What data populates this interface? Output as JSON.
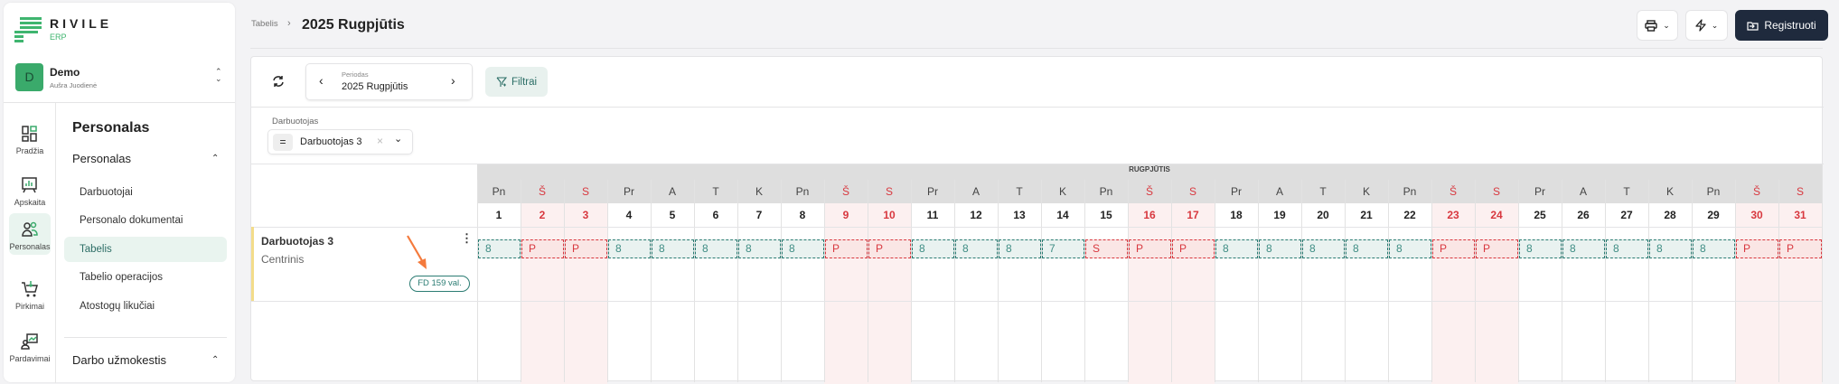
{
  "brand": {
    "name": "RIVILE",
    "sub": "ERP"
  },
  "company": {
    "initial": "D",
    "name": "Demo",
    "user": "Aušra Juodienė"
  },
  "rail": [
    {
      "label": "Pradžia",
      "icon": "dashboard-icon"
    },
    {
      "label": "Apskaita",
      "icon": "chart-board-icon"
    },
    {
      "label": "Personalas",
      "icon": "users-icon",
      "active": true
    },
    {
      "label": "Pirkimai",
      "icon": "cart-icon"
    },
    {
      "label": "Pardavimai",
      "icon": "sales-icon"
    }
  ],
  "nav": {
    "title": "Personalas",
    "section": "Personalas",
    "items": [
      "Darbuotojai",
      "Personalo dokumentai",
      "Tabelis",
      "Tabelio operacijos",
      "Atostogų likučiai"
    ],
    "active": "Tabelis",
    "section2": "Darbo užmokestis"
  },
  "breadcrumb": {
    "parent": "Tabelis",
    "current": "2025 Rugpjūtis"
  },
  "actions": {
    "print_icon": "printer-icon",
    "quick_icon": "lightning-icon",
    "register": "Registruoti"
  },
  "toolbar": {
    "period_label": "Periodas",
    "period_value": "2025 Rugpjūtis",
    "filters": "Filtrai"
  },
  "filter": {
    "label": "Darbuotojas",
    "value": "Darbuotojas 3"
  },
  "timesheet": {
    "month": "RUGPJŪTIS",
    "days": [
      {
        "d": "1",
        "w": "Pn",
        "v": "8"
      },
      {
        "d": "2",
        "w": "Š",
        "v": "P",
        "off": true
      },
      {
        "d": "3",
        "w": "S",
        "v": "P",
        "off": true
      },
      {
        "d": "4",
        "w": "Pr",
        "v": "8"
      },
      {
        "d": "5",
        "w": "A",
        "v": "8"
      },
      {
        "d": "6",
        "w": "T",
        "v": "8"
      },
      {
        "d": "7",
        "w": "K",
        "v": "8"
      },
      {
        "d": "8",
        "w": "Pn",
        "v": "8"
      },
      {
        "d": "9",
        "w": "Š",
        "v": "P",
        "off": true
      },
      {
        "d": "10",
        "w": "S",
        "v": "P",
        "off": true
      },
      {
        "d": "11",
        "w": "Pr",
        "v": "8"
      },
      {
        "d": "12",
        "w": "A",
        "v": "8"
      },
      {
        "d": "13",
        "w": "T",
        "v": "8"
      },
      {
        "d": "14",
        "w": "K",
        "v": "7"
      },
      {
        "d": "15",
        "w": "Pn",
        "v": "S",
        "redcell": true
      },
      {
        "d": "16",
        "w": "Š",
        "v": "P",
        "off": true
      },
      {
        "d": "17",
        "w": "S",
        "v": "P",
        "off": true
      },
      {
        "d": "18",
        "w": "Pr",
        "v": "8"
      },
      {
        "d": "19",
        "w": "A",
        "v": "8"
      },
      {
        "d": "20",
        "w": "T",
        "v": "8"
      },
      {
        "d": "21",
        "w": "K",
        "v": "8"
      },
      {
        "d": "22",
        "w": "Pn",
        "v": "8"
      },
      {
        "d": "23",
        "w": "Š",
        "v": "P",
        "off": true
      },
      {
        "d": "24",
        "w": "S",
        "v": "P",
        "off": true
      },
      {
        "d": "25",
        "w": "Pr",
        "v": "8"
      },
      {
        "d": "26",
        "w": "A",
        "v": "8"
      },
      {
        "d": "27",
        "w": "T",
        "v": "8"
      },
      {
        "d": "28",
        "w": "K",
        "v": "8"
      },
      {
        "d": "29",
        "w": "Pn",
        "v": "8"
      },
      {
        "d": "30",
        "w": "Š",
        "v": "P",
        "off": true
      },
      {
        "d": "31",
        "w": "S",
        "v": "P",
        "off": true
      }
    ],
    "employee": {
      "name": "Darbuotojas 3",
      "unit": "Centrinis",
      "badge": "FD 159 val."
    }
  },
  "colors": {
    "accent": "#2b7c73",
    "weekend": "#d8383f",
    "dark": "#1f2a3d",
    "arrow": "#f47a3c"
  }
}
